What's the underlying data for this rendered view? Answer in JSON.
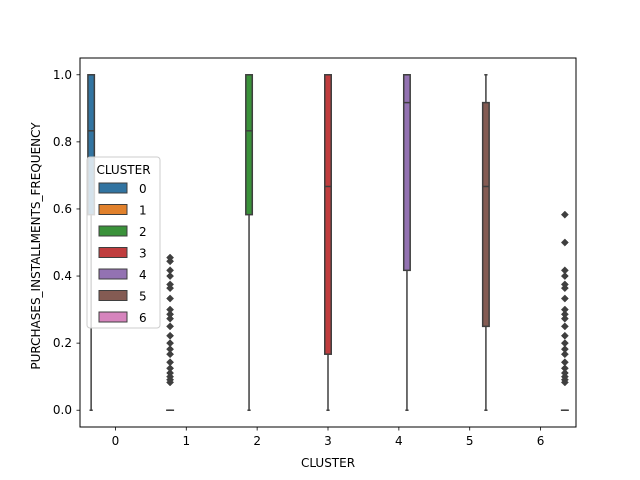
{
  "chart_data": {
    "type": "box",
    "xlabel": "CLUSTER",
    "ylabel": "PURCHASES_INSTALLMENTS_FREQUENCY",
    "categories": [
      "0",
      "1",
      "2",
      "3",
      "4",
      "5",
      "6"
    ],
    "ylim": [
      -0.05,
      1.05
    ],
    "yticks": [
      0.0,
      0.2,
      0.4,
      0.6,
      0.8,
      1.0
    ],
    "ytick_labels": [
      "0.0",
      "0.2",
      "0.4",
      "0.6",
      "0.8",
      "1.0"
    ],
    "grid": false,
    "legend": {
      "title": "CLUSTER",
      "placement": "center-left",
      "entries": [
        "0",
        "1",
        "2",
        "3",
        "4",
        "5",
        "6"
      ]
    },
    "series": [
      {
        "name": "0",
        "category": "0",
        "color": "#3274a1",
        "whisker_low": 0.0,
        "q1": 0.583,
        "median": 0.833,
        "q3": 1.0,
        "whisker_high": 1.0,
        "outliers": []
      },
      {
        "name": "1",
        "category": "1",
        "color": "#e1812c",
        "whisker_low": 0.0,
        "q1": 0.0,
        "median": 0.0,
        "q3": 0.0,
        "whisker_high": 0.0,
        "outliers": [
          0.083,
          0.091,
          0.1,
          0.111,
          0.125,
          0.143,
          0.167,
          0.182,
          0.2,
          0.222,
          0.25,
          0.273,
          0.286,
          0.3,
          0.333,
          0.364,
          0.375,
          0.4,
          0.417,
          0.444,
          0.455
        ]
      },
      {
        "name": "2",
        "category": "2",
        "color": "#3a923a",
        "whisker_low": 0.0,
        "q1": 0.583,
        "median": 0.833,
        "q3": 1.0,
        "whisker_high": 1.0,
        "outliers": []
      },
      {
        "name": "3",
        "category": "3",
        "color": "#c03d3e",
        "whisker_low": 0.0,
        "q1": 0.167,
        "median": 0.667,
        "q3": 1.0,
        "whisker_high": 1.0,
        "outliers": []
      },
      {
        "name": "4",
        "category": "4",
        "color": "#9372b2",
        "whisker_low": 0.0,
        "q1": 0.417,
        "median": 0.917,
        "q3": 1.0,
        "whisker_high": 1.0,
        "outliers": []
      },
      {
        "name": "5",
        "category": "5",
        "color": "#845b53",
        "whisker_low": 0.0,
        "q1": 0.25,
        "median": 0.667,
        "q3": 0.917,
        "whisker_high": 1.0,
        "outliers": []
      },
      {
        "name": "6",
        "category": "6",
        "color": "#d684bd",
        "whisker_low": 0.0,
        "q1": 0.0,
        "median": 0.0,
        "q3": 0.0,
        "whisker_high": 0.0,
        "outliers": [
          0.083,
          0.091,
          0.1,
          0.111,
          0.125,
          0.143,
          0.167,
          0.182,
          0.2,
          0.222,
          0.25,
          0.273,
          0.286,
          0.3,
          0.333,
          0.364,
          0.375,
          0.4,
          0.417,
          0.5,
          0.583
        ]
      }
    ]
  }
}
